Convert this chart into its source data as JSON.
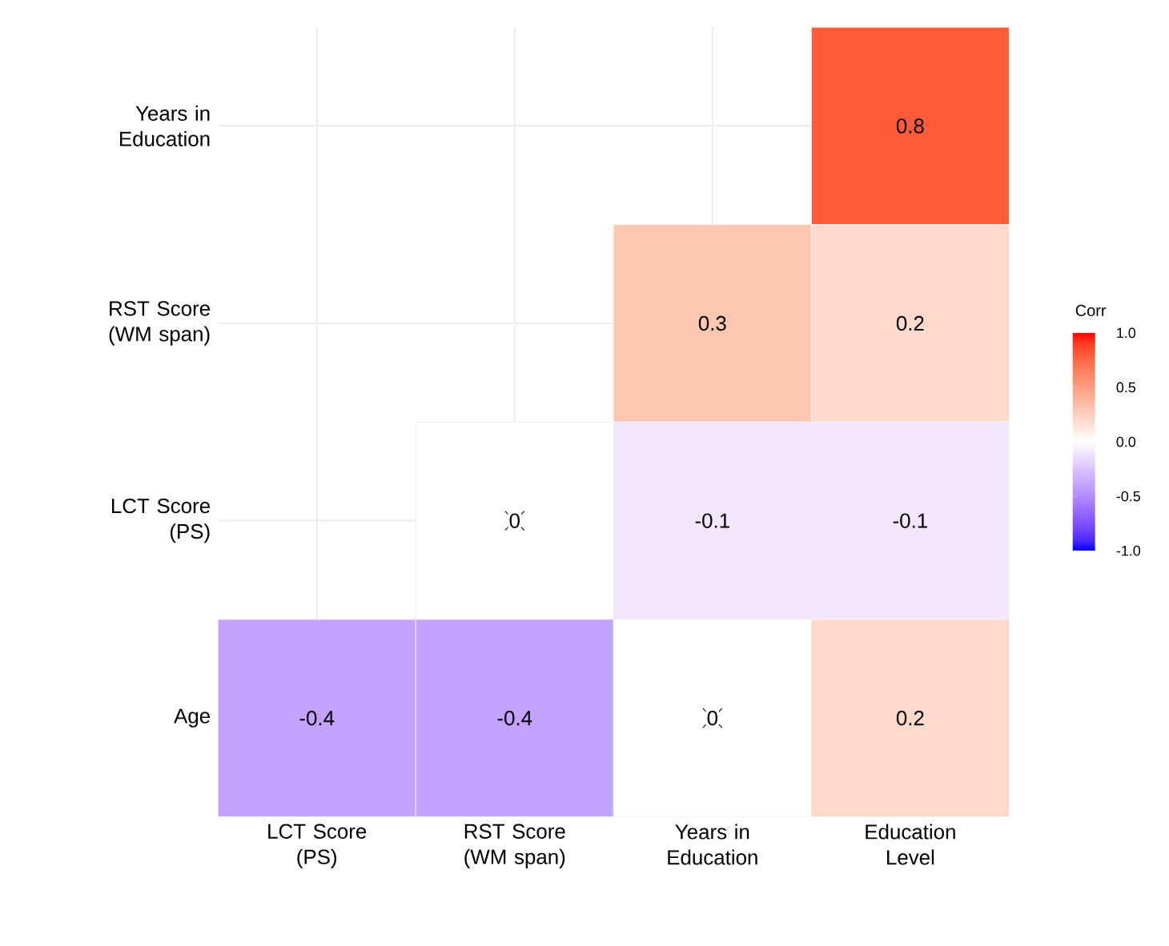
{
  "chart_data": {
    "type": "heatmap",
    "clabel": "Corr",
    "categories": [
      "LCT Score (PS)",
      "RST Score (WM span)",
      "Years in Education",
      "Education Level"
    ],
    "y_categories": [
      "Years in Education",
      "RST Score (WM span)",
      "LCT Score (PS)",
      "Age"
    ],
    "cells": [
      [
        null,
        null,
        null,
        0.8
      ],
      [
        null,
        null,
        0.3,
        0.2
      ],
      [
        null,
        0,
        -0.1,
        -0.1
      ],
      [
        -0.4,
        -0.4,
        0,
        0.2
      ]
    ],
    "cell_labels": [
      [
        null,
        null,
        null,
        "0.8"
      ],
      [
        null,
        null,
        "0.3",
        "0.2"
      ],
      [
        null,
        "0",
        "-0.1",
        "-0.1"
      ],
      [
        "-0.4",
        "-0.4",
        "0",
        "0.2"
      ]
    ],
    "colors": [
      "#0000ff",
      "#ffffff",
      "#ff0000"
    ],
    "clim": [
      -1,
      1
    ],
    "cticks": [
      {
        "value": -1,
        "label": "-1.0"
      },
      {
        "value": -0.5,
        "label": "-0.5"
      },
      {
        "value": 0,
        "label": "0.0"
      },
      {
        "value": 0.5,
        "label": "0.5"
      },
      {
        "value": 1,
        "label": "1.0"
      }
    ],
    "marker": "cross",
    "grid": true
  }
}
